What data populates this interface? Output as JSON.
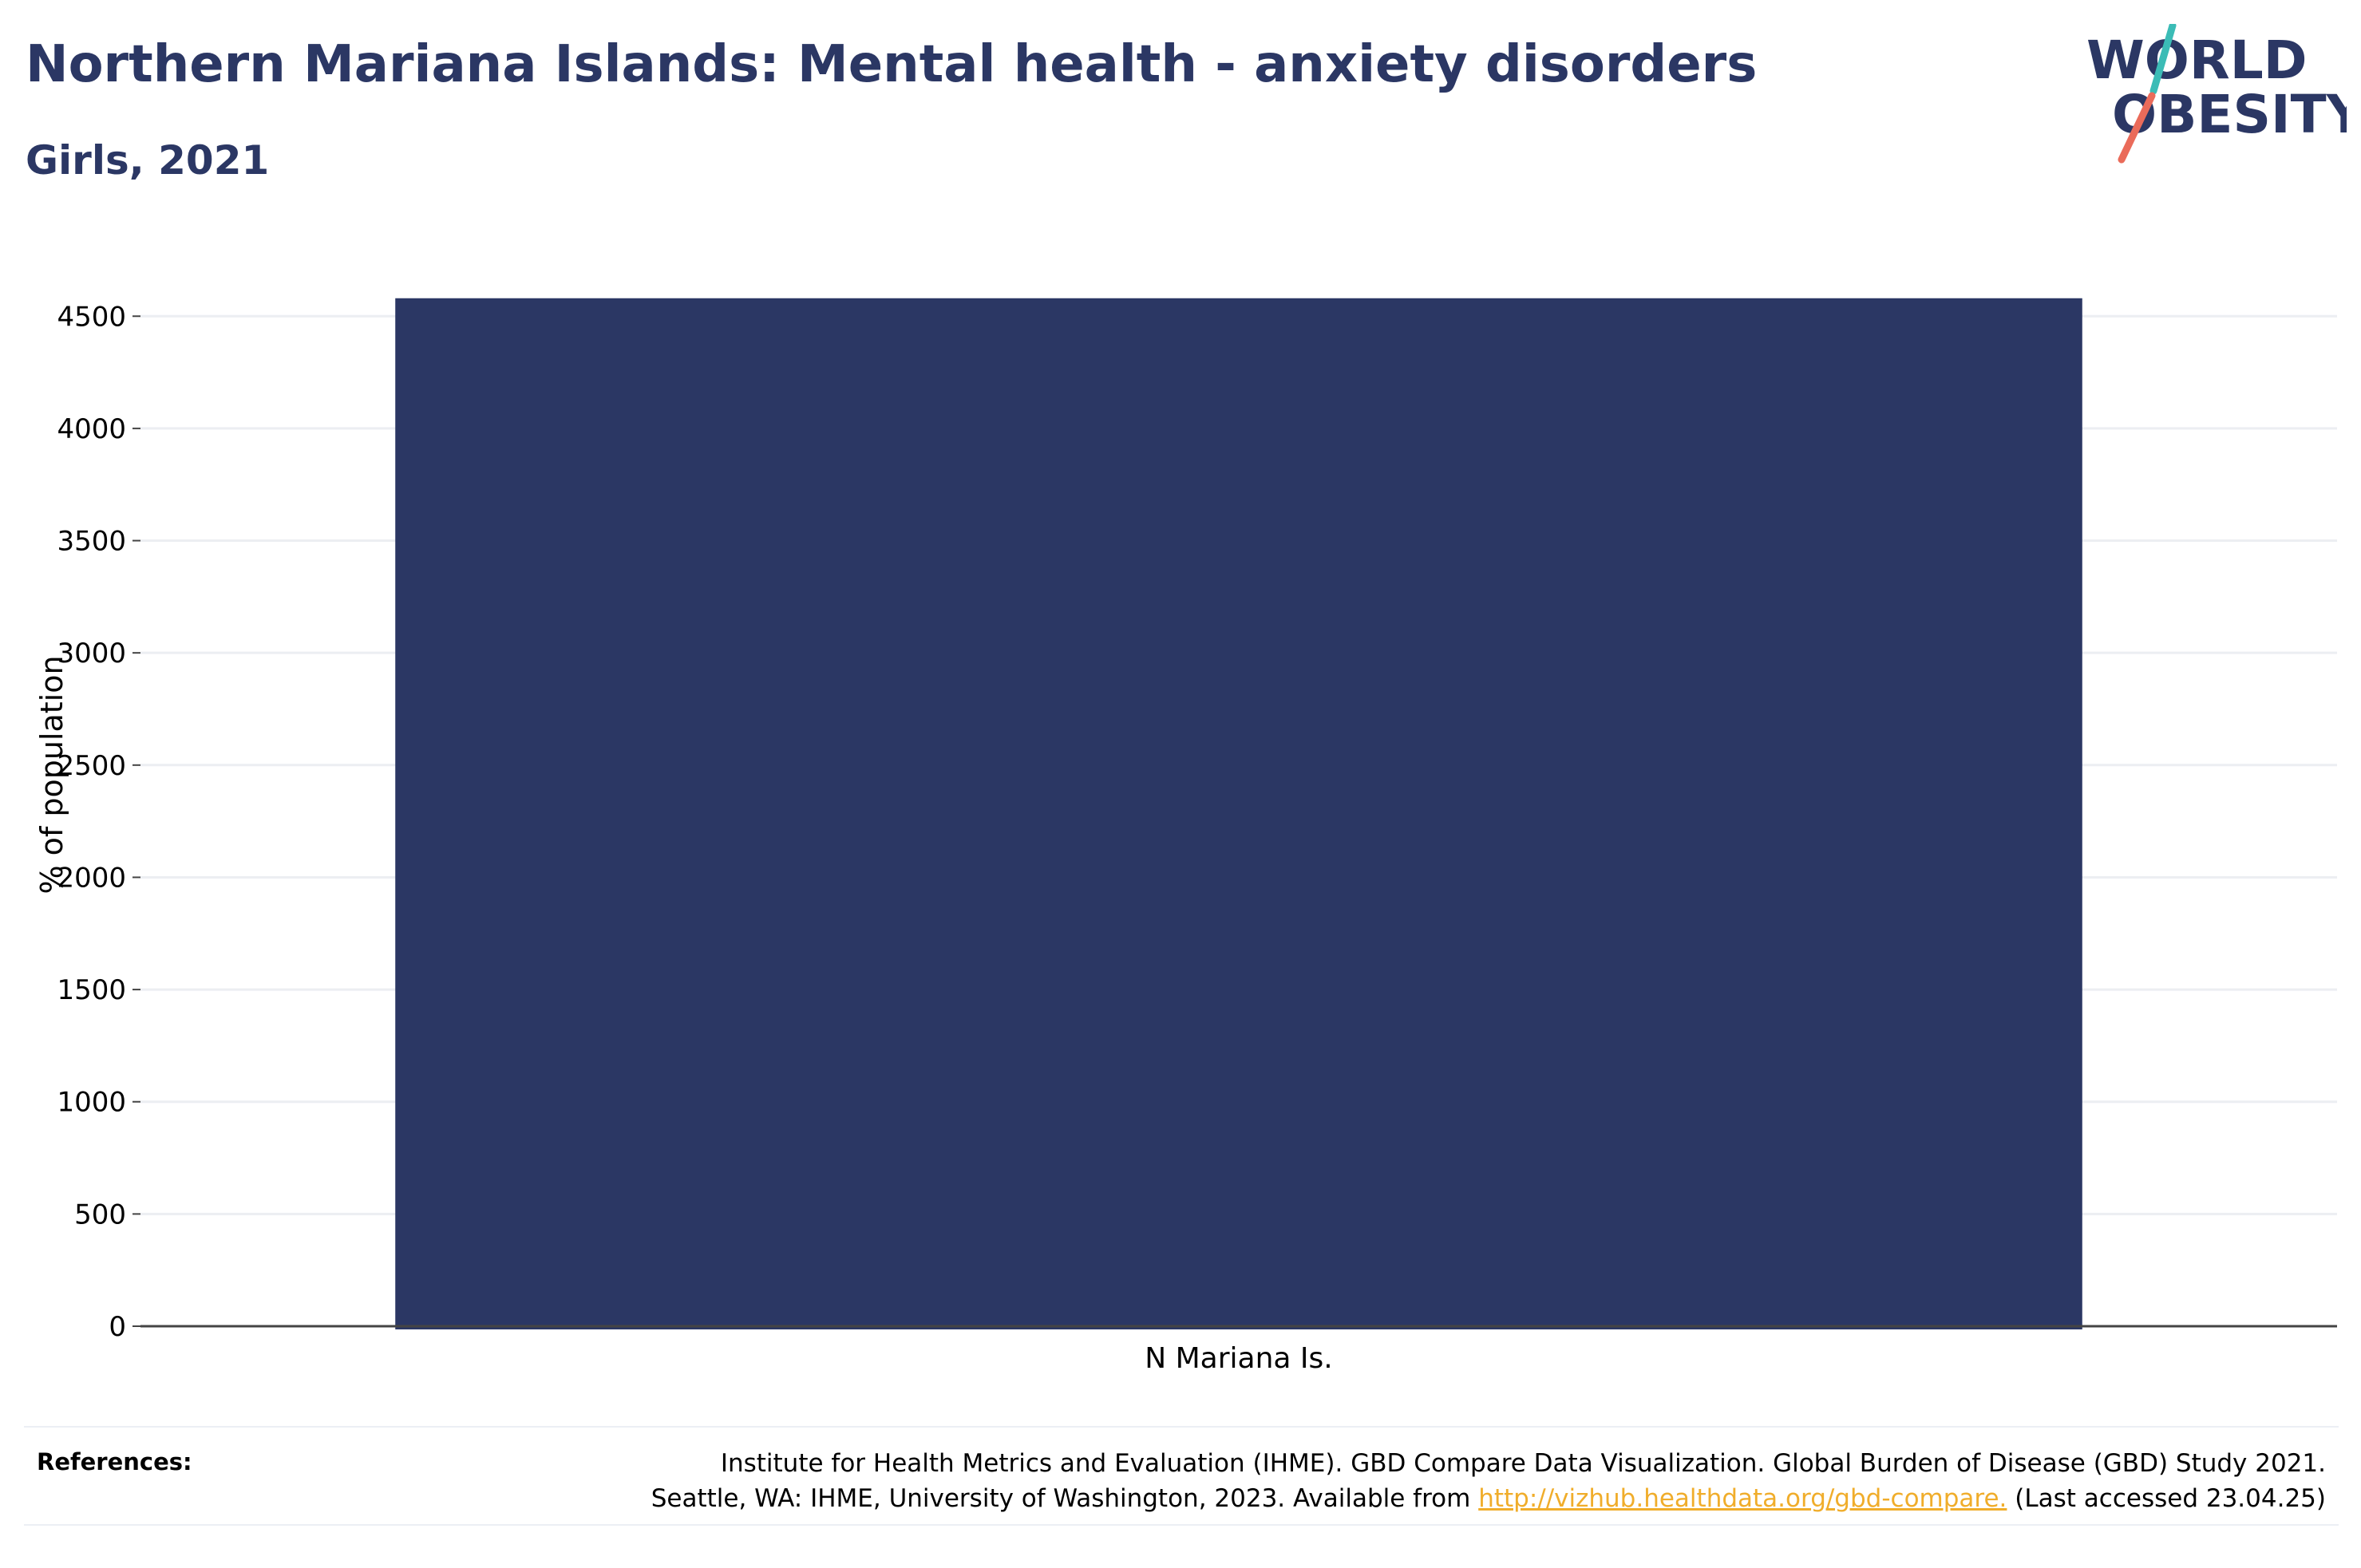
{
  "header": {
    "title": "Northern Mariana Islands: Mental health - anxiety disorders",
    "subtitle": "Girls, 2021"
  },
  "logo": {
    "line1": "WORLD",
    "line2": "OBESITY",
    "colors": {
      "text": "#2b3764",
      "slash_teal": "#3bbcb6",
      "slash_coral": "#ea6b5a"
    }
  },
  "chart_data": {
    "type": "bar",
    "categories": [
      "N Mariana Is."
    ],
    "values": [
      4580
    ],
    "ylabel": "% of population",
    "ylim": [
      0,
      4700
    ],
    "yticks": [
      0,
      500,
      1000,
      1500,
      2000,
      2500,
      3000,
      3500,
      4000,
      4500
    ],
    "grid": true,
    "bar_color": "#2b3764"
  },
  "references": {
    "heading": "References:",
    "line1": "Institute for Health Metrics and Evaluation (IHME). GBD Compare Data Visualization. Global Burden of Disease (GBD) Study 2021.",
    "line2_prefix": "Seattle, WA: IHME, University of Washington, 2023. Available from ",
    "link_text": "http://vizhub.healthdata.org/gbd-compare.",
    "line2_suffix": " (Last accessed 23.04.25)"
  }
}
